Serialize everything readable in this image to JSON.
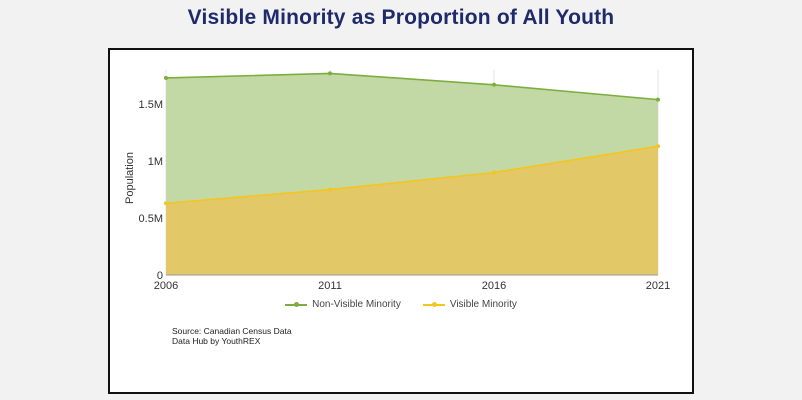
{
  "page": {
    "title": "Visible Minority as Proportion of All Youth"
  },
  "source": {
    "line1": "Source: Canadian Census Data",
    "line2": "Data Hub by YouthREX"
  },
  "colors": {
    "title": "#1f2a6b",
    "non_visible_line": "#7cae3e",
    "non_visible_fill": "#c2d9a5",
    "visible_line": "#f5c51f",
    "visible_fill": "#e2c867",
    "grid": "#e6e6e6"
  },
  "chart_data": {
    "type": "area",
    "stacked": true,
    "title": "Visible Minority as Proportion of All Youth",
    "xlabel": "",
    "ylabel": "Population",
    "x": [
      2006,
      2011,
      2016,
      2021
    ],
    "x_tick_labels": [
      "2006",
      "2011",
      "2016",
      "2021"
    ],
    "ylim": [
      0,
      1800000
    ],
    "y_ticks": [
      0,
      500000,
      1000000,
      1500000
    ],
    "y_tick_labels": [
      "0",
      "0.5M",
      "1M",
      "1.5M"
    ],
    "grid": true,
    "legend_position": "bottom",
    "series": [
      {
        "name": "Non-Visible Minority",
        "values": [
          1100000,
          1020000,
          770000,
          410000
        ],
        "color": "#7cae3e",
        "fill": "#c2d9a5"
      },
      {
        "name": "Visible Minority",
        "values": [
          630000,
          750000,
          900000,
          1130000
        ],
        "color": "#f5c51f",
        "fill": "#e2c867"
      }
    ]
  }
}
